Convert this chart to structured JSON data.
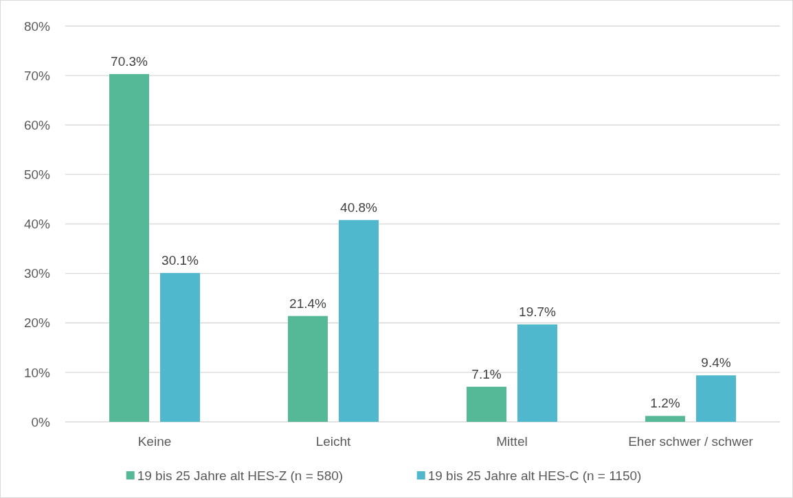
{
  "chart_data": {
    "type": "bar",
    "categories": [
      "Keine",
      "Leicht",
      "Mittel",
      "Eher schwer / schwer"
    ],
    "series": [
      {
        "name": "19 bis 25 Jahre alt HES-Z (n = 580)",
        "color": "#55b997",
        "values": [
          70.3,
          21.4,
          7.1,
          1.2
        ]
      },
      {
        "name": "19 bis 25 Jahre alt HES-C (n = 1150)",
        "color": "#4fb8cc",
        "values": [
          30.1,
          40.8,
          19.7,
          9.4
        ]
      }
    ],
    "ylim": [
      0,
      80
    ],
    "yticks": [
      {
        "value": 0,
        "label": "0%"
      },
      {
        "value": 10,
        "label": "10%"
      },
      {
        "value": 20,
        "label": "20%"
      },
      {
        "value": 30,
        "label": "30%"
      },
      {
        "value": 40,
        "label": "40%"
      },
      {
        "value": 50,
        "label": "50%"
      },
      {
        "value": 60,
        "label": "60%"
      },
      {
        "value": 70,
        "label": "70%"
      },
      {
        "value": 80,
        "label": "80%"
      }
    ],
    "value_labels": [
      [
        "70.3%",
        "21.4%",
        "7.1%",
        "1.2%"
      ],
      [
        "30.1%",
        "40.8%",
        "19.7%",
        "9.4%"
      ]
    ],
    "grid": "y",
    "legend": "bottom"
  }
}
